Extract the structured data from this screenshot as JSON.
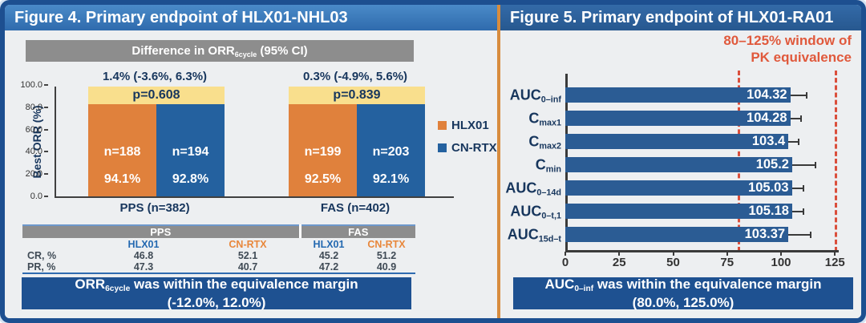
{
  "figure4": {
    "title": "Figure 4. Primary endpoint of HLX01-NHL03",
    "diff_header": {
      "pre": "Difference in ORR",
      "sub": "6cycle",
      "post": " (95% CI)"
    },
    "ylabel": "Best ORR (%)",
    "yticks": [
      "100.0",
      "80.0",
      "60.0",
      "40.0",
      "20.0",
      "0.0"
    ],
    "groups": [
      {
        "name": "PPS (n=382)",
        "ci": "1.4% (-3.6%, 6.3%)",
        "p": "p=0.608",
        "bars": [
          {
            "series": "HLX01",
            "n": "n=188",
            "pct": "94.1%",
            "value": 94.1
          },
          {
            "series": "CN-RTX",
            "n": "n=194",
            "pct": "92.8%",
            "value": 92.8
          }
        ]
      },
      {
        "name": "FAS (n=402)",
        "ci": "0.3% (-4.9%, 5.6%)",
        "p": "p=0.839",
        "bars": [
          {
            "series": "HLX01",
            "n": "n=199",
            "pct": "92.5%",
            "value": 92.5
          },
          {
            "series": "CN-RTX",
            "n": "n=203",
            "pct": "92.1%",
            "value": 92.1
          }
        ]
      }
    ],
    "legend": [
      {
        "label": "HLX01",
        "color": "#E0813C"
      },
      {
        "label": "CN-RTX",
        "color": "#24619F"
      }
    ],
    "table": {
      "col_groups": [
        "PPS",
        "FAS"
      ],
      "col_headers": [
        "HLX01",
        "CN-RTX",
        "HLX01",
        "CN-RTX"
      ],
      "rows": [
        {
          "label": "CR, %",
          "values": [
            "46.8",
            "52.1",
            "45.2",
            "51.2"
          ]
        },
        {
          "label": "PR, %",
          "values": [
            "47.3",
            "40.7",
            "47.2",
            "40.9"
          ]
        }
      ]
    },
    "banner": {
      "pre": "ORR",
      "sub": "6cycle",
      "post": " was within the equivalence margin",
      "line2": "(-12.0%, 12.0%)"
    }
  },
  "figure5": {
    "title": "Figure 5. Primary endpoint of HLX01-RA01",
    "window_note_line1": "80–125% window of",
    "window_note_line2": "PK equivalence",
    "params": [
      {
        "main": "AUC",
        "sub": "0–inf",
        "display": "104.32",
        "value": 104.32,
        "err_hi": 112.2
      },
      {
        "main": "C",
        "sub": "max1",
        "display": "104.28",
        "value": 104.28,
        "err_hi": 109.5
      },
      {
        "main": "C",
        "sub": "max2",
        "display": "103.4",
        "value": 103.4,
        "err_hi": 108.5
      },
      {
        "main": "C",
        "sub": "min",
        "display": "105.2",
        "value": 105.2,
        "err_hi": 116.5
      },
      {
        "main": "AUC",
        "sub": "0–14d",
        "display": "105.03",
        "value": 105.03,
        "err_hi": 110.8
      },
      {
        "main": "AUC",
        "sub": "0–t,1",
        "display": "105.18",
        "value": 105.18,
        "err_hi": 110.8
      },
      {
        "main": "AUC",
        "sub": "15d–t",
        "display": "103.37",
        "value": 103.37,
        "err_hi": 114.3
      }
    ],
    "xticks": [
      0,
      25,
      50,
      75,
      100,
      125
    ],
    "equiv_window": [
      80,
      125
    ],
    "banner": {
      "pre": "AUC",
      "sub": "0–inf",
      "post": " was within the equivalence margin",
      "line2": "(80.0%, 125.0%)"
    }
  },
  "chart_data": [
    {
      "type": "bar",
      "title": "Figure 4. Primary endpoint of HLX01-NHL03",
      "ylabel": "Best ORR (%)",
      "ylim": [
        0,
        100
      ],
      "categories": [
        "PPS (n=382)",
        "FAS (n=402)"
      ],
      "series": [
        {
          "name": "HLX01",
          "values": [
            94.1,
            92.5
          ],
          "n": [
            188,
            199
          ],
          "color": "#E0813C"
        },
        {
          "name": "CN-RTX",
          "values": [
            92.8,
            92.1
          ],
          "n": [
            194,
            203
          ],
          "color": "#24619F"
        }
      ],
      "annotations": {
        "difference_95ci": [
          "1.4% (-3.6%, 6.3%)",
          "0.3% (-4.9%, 5.6%)"
        ],
        "p_values": [
          "p=0.608",
          "p=0.839"
        ],
        "header": "Difference in ORR6cycle (95% CI)",
        "conclusion": "ORR6cycle was within the equivalence margin (-12.0%, 12.0%)"
      },
      "grid": false,
      "legend_position": "right",
      "table": {
        "column_groups": [
          "PPS",
          "FAS"
        ],
        "columns": [
          "HLX01",
          "CN-RTX",
          "HLX01",
          "CN-RTX"
        ],
        "rows": [
          {
            "label": "CR, %",
            "values": [
              46.8,
              52.1,
              45.2,
              51.2
            ]
          },
          {
            "label": "PR, %",
            "values": [
              47.3,
              40.7,
              47.2,
              40.9
            ]
          }
        ]
      }
    },
    {
      "type": "bar",
      "orientation": "horizontal",
      "title": "Figure 5. Primary endpoint of HLX01-RA01",
      "categories": [
        "AUC0–inf",
        "Cmax1",
        "Cmax2",
        "Cmin",
        "AUC0–14d",
        "AUC0–t,1",
        "AUC15d–t"
      ],
      "values": [
        104.32,
        104.28,
        103.4,
        105.2,
        105.03,
        105.18,
        103.37
      ],
      "upper_error_estimate": [
        112.2,
        109.5,
        108.5,
        116.5,
        110.8,
        110.8,
        114.3
      ],
      "xlim": [
        0,
        135
      ],
      "xticks": [
        0,
        25,
        50,
        75,
        100,
        125
      ],
      "equivalence_window": [
        80,
        125
      ],
      "grid": false,
      "annotations": {
        "window_note": "80–125% window of PK equivalence",
        "conclusion": "AUC0–inf was within the equivalence margin (80.0%, 125.0%)"
      }
    }
  ]
}
